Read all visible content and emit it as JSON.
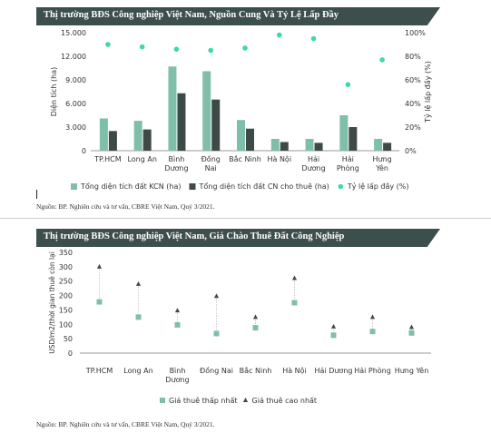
{
  "chart1": {
    "header": "Thị trường BĐS Công nghiệp Việt Nam, Nguồn Cung Và Tỷ Lệ Lấp Đầy",
    "source": "Nguồn: BP. Nghiên cứu và tư vấn, CBRE Việt Nam, Quý 3/2021.",
    "chart_data": {
      "type": "bar",
      "categories": [
        [
          "TP.HCM"
        ],
        [
          "Long An"
        ],
        [
          "Bình",
          "Dương"
        ],
        [
          "Đồng",
          "Nai"
        ],
        [
          "Bắc Ninh"
        ],
        [
          "Hà Nội"
        ],
        [
          "Hải",
          "Dương"
        ],
        [
          "Hải",
          "Phòng"
        ],
        [
          "Hưng",
          "Yên"
        ]
      ],
      "series": [
        {
          "name": "Tổng diện tích đất KCN (ha)",
          "type": "bar",
          "axis": "left",
          "color": "#7fbfa9",
          "values": [
            4100,
            3800,
            10700,
            10100,
            3900,
            1500,
            1500,
            4500,
            1500
          ]
        },
        {
          "name": "Tổng diện tích đất CN cho thuê (ha)",
          "type": "bar",
          "axis": "left",
          "color": "#3e4a48",
          "values": [
            2500,
            2700,
            7300,
            6500,
            2800,
            1100,
            1000,
            3000,
            1000
          ]
        },
        {
          "name": "Tỷ lệ lấp đầy (%)",
          "type": "scatter",
          "axis": "right",
          "color": "#3ddba0",
          "values": [
            90,
            88,
            86,
            85,
            87,
            98,
            95,
            56,
            77
          ]
        }
      ],
      "ylabel": "Diện tích (ha)",
      "ylabel_right": "Tỷ lệ lấp đầy (%)",
      "ylim": [
        0,
        15000
      ],
      "ylim_right": [
        0,
        100
      ],
      "yticks": [
        "0",
        "3.000",
        "6.000",
        "9.000",
        "12.000",
        "15.000"
      ],
      "yticks_right": [
        "0%",
        "20%",
        "40%",
        "60%",
        "80%",
        "100%"
      ],
      "grid": false,
      "legend": "bottom"
    }
  },
  "chart2": {
    "header": "Thị trường BĐS Công nghiệp Việt Nam, Giá Chào Thuê Đất Công Nghiệp",
    "source": "Nguồn: BP. Nghiên cứu và tư vấn, CBRE Việt Nam, Quý 3/2021.",
    "chart_data": {
      "type": "scatter",
      "categories": [
        "TP.HCM",
        "Long An",
        "Bình Dương",
        "Đồng Nai",
        "Bắc Ninh",
        "Hà Nội",
        "Hải Dương",
        "Hải Phòng",
        "Hưng Yên"
      ],
      "category_lines": [
        [
          "TP.HCM"
        ],
        [
          "Long An"
        ],
        [
          "Bình",
          "Dương"
        ],
        [
          "Đồng Nai"
        ],
        [
          "Bắc Ninh"
        ],
        [
          "Hà Nội"
        ],
        [
          "Hải Dương"
        ],
        [
          "Hải Phòng"
        ],
        [
          "Hưng Yên"
        ]
      ],
      "series": [
        {
          "name": "Giá thuê thấp nhất",
          "marker": "square",
          "color": "#7fbfa9",
          "values": [
            178,
            125,
            98,
            68,
            88,
            175,
            62,
            75,
            70
          ]
        },
        {
          "name": "Giá thuê cao nhất",
          "marker": "triangle",
          "color": "#3e4a48",
          "values": [
            300,
            240,
            148,
            198,
            125,
            260,
            92,
            125,
            90
          ]
        }
      ],
      "ylabel": "USD/m2/thời gian thuê còn lại",
      "ylim": [
        0,
        350
      ],
      "yticks": [
        "0",
        "50",
        "100",
        "150",
        "200",
        "250",
        "300",
        "350"
      ],
      "grid": false,
      "legend": "bottom"
    }
  }
}
